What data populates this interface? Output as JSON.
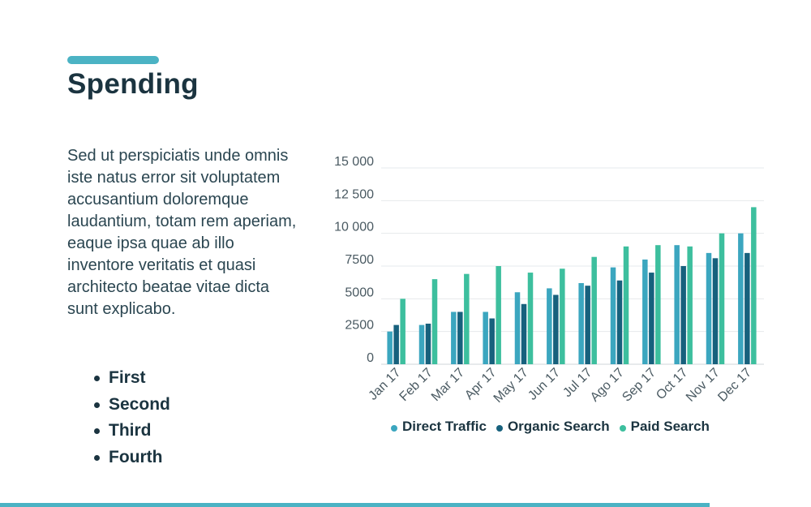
{
  "slide": {
    "title": "Spending",
    "body": "Sed ut perspiciatis unde omnis iste natus error sit voluptatem accusantium doloremque laudantium, totam rem aperiam, eaque ipsa quae ab illo inventore veritatis et quasi architecto beatae vitae dicta sunt explicabo.",
    "bullets": [
      "First",
      "Second",
      "Third",
      "Fourth"
    ]
  },
  "colors": {
    "accent": "#4bb3c4",
    "direct": "#3ba6bf",
    "organic": "#17617d",
    "paid": "#3dbf9e"
  },
  "chart_data": {
    "type": "bar",
    "title": "",
    "xlabel": "",
    "ylabel": "",
    "ylim": [
      0,
      15000
    ],
    "yticks": [
      0,
      2500,
      5000,
      7500,
      10000,
      12500,
      15000
    ],
    "ytick_labels": [
      "0",
      "2500",
      "5000",
      "7500",
      "10 000",
      "12 500",
      "15 000"
    ],
    "categories": [
      "Jan 17",
      "Feb 17",
      "Mar 17",
      "Apr 17",
      "May 17",
      "Jun 17",
      "Jul 17",
      "Ago 17",
      "Sep 17",
      "Oct 17",
      "Nov 17",
      "Dec 17"
    ],
    "series": [
      {
        "name": "Direct Traffic",
        "color": "#3ba6bf",
        "values": [
          2500,
          3000,
          4000,
          4000,
          5500,
          5800,
          6200,
          7400,
          8000,
          9100,
          8500,
          10000
        ]
      },
      {
        "name": "Organic Search",
        "color": "#17617d",
        "values": [
          3000,
          3100,
          4000,
          3500,
          4600,
          5300,
          6000,
          6400,
          7000,
          7500,
          8100,
          8500
        ]
      },
      {
        "name": "Paid Search",
        "color": "#3dbf9e",
        "values": [
          5000,
          6500,
          6900,
          7500,
          7000,
          7300,
          8200,
          9000,
          9100,
          9000,
          10000,
          12000
        ]
      }
    ],
    "legend_position": "bottom"
  }
}
